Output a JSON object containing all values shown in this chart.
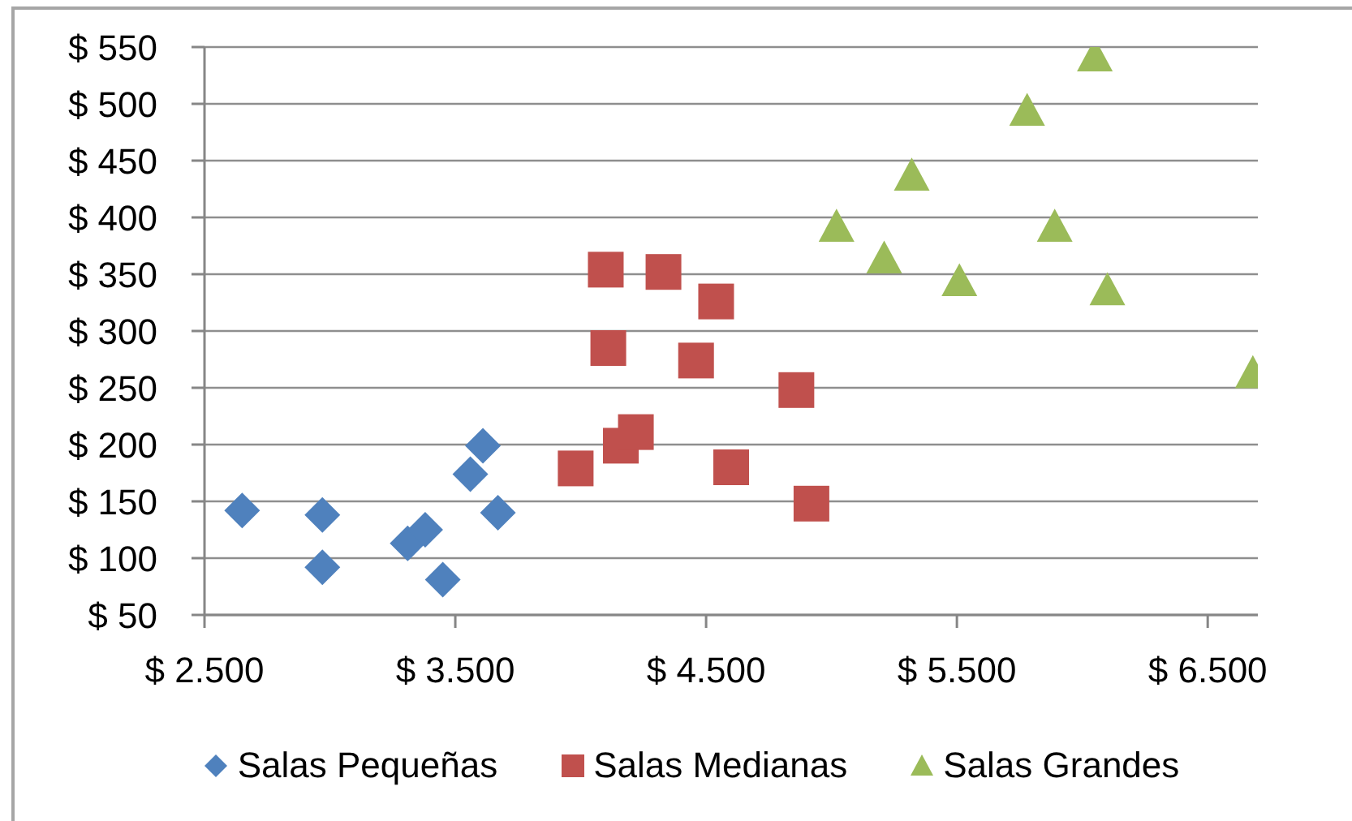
{
  "chart_data": {
    "type": "scatter",
    "xlim": [
      2500,
      6700
    ],
    "xticks": [
      {
        "value": 2500,
        "label": "$ 2.500"
      },
      {
        "value": 3500,
        "label": "$ 3.500"
      },
      {
        "value": 4500,
        "label": "$ 4.500"
      },
      {
        "value": 5500,
        "label": "$ 5.500"
      },
      {
        "value": 6500,
        "label": "$ 6.500"
      }
    ],
    "ylim": [
      50,
      550
    ],
    "yticks": [
      {
        "value": 50,
        "label": "$ 50"
      },
      {
        "value": 100,
        "label": "$ 100"
      },
      {
        "value": 150,
        "label": "$ 150"
      },
      {
        "value": 200,
        "label": "$ 200"
      },
      {
        "value": 250,
        "label": "$ 250"
      },
      {
        "value": 300,
        "label": "$ 300"
      },
      {
        "value": 350,
        "label": "$ 350"
      },
      {
        "value": 400,
        "label": "$ 400"
      },
      {
        "value": 450,
        "label": "$ 450"
      },
      {
        "value": 500,
        "label": "$ 500"
      },
      {
        "value": 550,
        "label": "$ 550"
      }
    ],
    "grid": "y",
    "legend": "bottom",
    "series": [
      {
        "name": "Salas Pequeñas",
        "color": "#4f81bd",
        "marker": "diamond",
        "x": [
          2650,
          2970,
          2970,
          3310,
          3380,
          3450,
          3560,
          3610,
          3670
        ],
        "values": [
          142,
          138,
          92,
          113,
          125,
          81,
          174,
          199,
          140
        ]
      },
      {
        "name": "Salas Medianas",
        "color": "#c0504d",
        "marker": "square",
        "x": [
          3980,
          4100,
          4110,
          4160,
          4220,
          4330,
          4460,
          4540,
          4600,
          4860,
          4920
        ],
        "values": [
          179,
          354,
          285,
          199,
          211,
          352,
          274,
          326,
          180,
          248,
          148
        ]
      },
      {
        "name": "Salas Grandes",
        "color": "#9bbb59",
        "marker": "triangle",
        "x": [
          5020,
          5210,
          5320,
          5510,
          5780,
          5890,
          6050,
          6100,
          6680
        ],
        "values": [
          392,
          364,
          437,
          344,
          494,
          392,
          542,
          336,
          263
        ]
      }
    ]
  }
}
